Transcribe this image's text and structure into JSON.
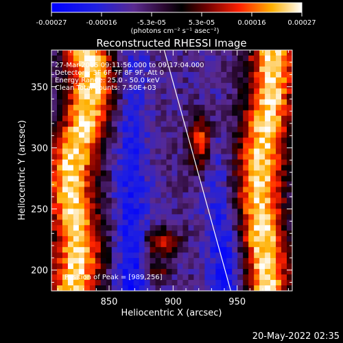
{
  "colorbar": {
    "ticks": [
      "-0.00027",
      "-0.00016",
      "-5.3e-05",
      "5.3e-05",
      "0.00016",
      "0.00027"
    ],
    "units": "(photons cm⁻² s⁻¹ asec⁻²)",
    "range": [
      -0.00027,
      0.00027
    ]
  },
  "chart_data": {
    "type": "heatmap",
    "title": "Reconstructed RHESSI Image",
    "xlabel": "Heliocentric X (arcsec)",
    "ylabel": "Heliocentric Y (arcsec)",
    "xlim": [
      805,
      993
    ],
    "ylim": [
      183,
      380
    ],
    "x_ticks": [
      850,
      900,
      950
    ],
    "y_ticks": [
      200,
      250,
      300,
      350
    ],
    "grid": false,
    "limb_line": {
      "x": [
        893,
        945
      ],
      "y": [
        380,
        183
      ]
    },
    "annotations": {
      "time_range": "27-Mar-2015 09:11:56.000 to 09:17:04.000",
      "detectors": "Detectors: 3F 6F 7F 8F 9F, Att 0",
      "energy": "Energy Range: 25.0 - 50.0 keV",
      "clean": "Clean   Total counts: 7.50E+03",
      "peak": "Position of Peak = [989,256]"
    }
  },
  "footer": {
    "timestamp": "20-May-2022 02:35"
  }
}
